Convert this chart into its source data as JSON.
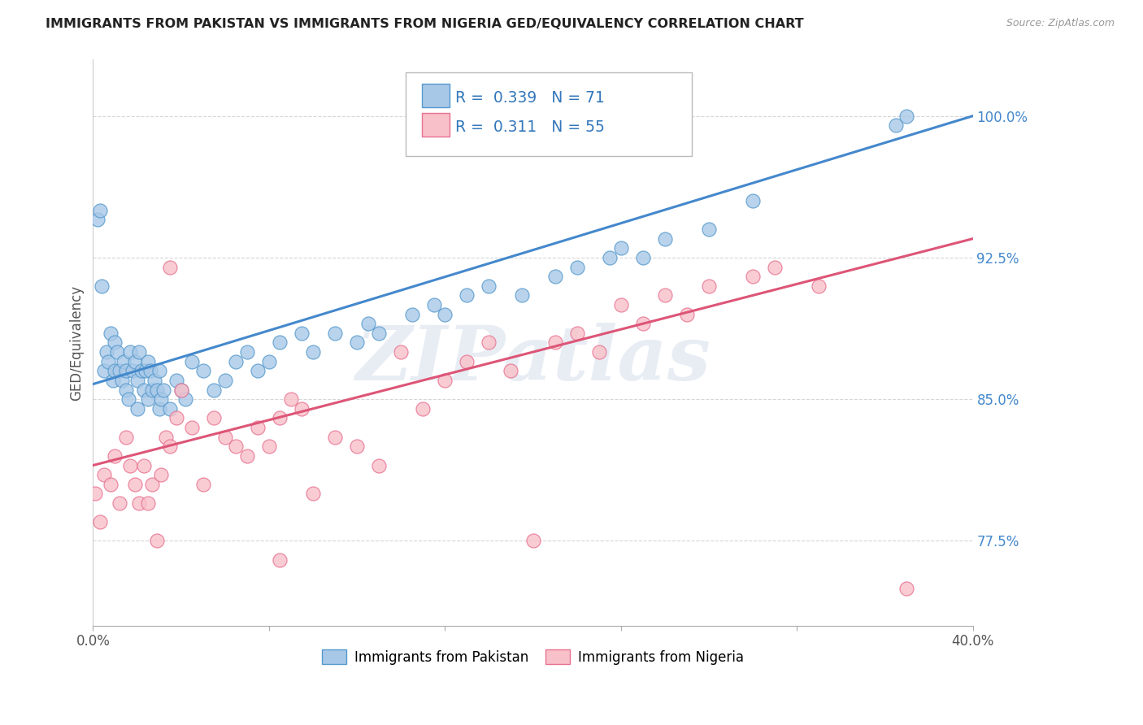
{
  "title": "IMMIGRANTS FROM PAKISTAN VS IMMIGRANTS FROM NIGERIA GED/EQUIVALENCY CORRELATION CHART",
  "source_text": "Source: ZipAtlas.com",
  "ylabel": "GED/Equivalency",
  "xlim": [
    0.0,
    40.0
  ],
  "ylim": [
    73.0,
    103.0
  ],
  "yticks": [
    77.5,
    85.0,
    92.5,
    100.0
  ],
  "ytick_labels": [
    "77.5%",
    "85.0%",
    "92.5%",
    "100.0%"
  ],
  "xticks": [
    0.0,
    8.0,
    16.0,
    24.0,
    32.0,
    40.0
  ],
  "xtick_labels": [
    "0.0%",
    "",
    "",
    "",
    "",
    "40.0%"
  ],
  "series": [
    {
      "label": "Immigrants from Pakistan",
      "R": 0.339,
      "N": 71,
      "color": "#a8c8e8",
      "edge_color": "#5599cc",
      "line_color": "#4488cc",
      "trend_x0": 0.0,
      "trend_y0": 85.8,
      "trend_x1": 40.0,
      "trend_y1": 100.0,
      "x": [
        0.2,
        0.3,
        0.4,
        0.5,
        0.6,
        0.7,
        0.8,
        0.9,
        1.0,
        1.0,
        1.1,
        1.2,
        1.3,
        1.4,
        1.5,
        1.5,
        1.6,
        1.7,
        1.8,
        1.9,
        2.0,
        2.0,
        2.1,
        2.2,
        2.3,
        2.4,
        2.5,
        2.5,
        2.6,
        2.7,
        2.8,
        2.9,
        3.0,
        3.0,
        3.1,
        3.2,
        3.5,
        3.8,
        4.0,
        4.2,
        4.5,
        5.0,
        5.5,
        6.0,
        6.5,
        7.0,
        7.5,
        8.0,
        8.5,
        9.5,
        10.0,
        11.0,
        12.0,
        12.5,
        13.0,
        14.5,
        15.5,
        16.0,
        17.0,
        18.0,
        19.5,
        21.0,
        22.0,
        23.5,
        24.0,
        25.0,
        26.0,
        28.0,
        30.0,
        36.5,
        37.0
      ],
      "y": [
        94.5,
        95.0,
        91.0,
        86.5,
        87.5,
        87.0,
        88.5,
        86.0,
        88.0,
        86.5,
        87.5,
        86.5,
        86.0,
        87.0,
        86.5,
        85.5,
        85.0,
        87.5,
        86.5,
        87.0,
        86.0,
        84.5,
        87.5,
        86.5,
        85.5,
        86.5,
        87.0,
        85.0,
        86.5,
        85.5,
        86.0,
        85.5,
        86.5,
        84.5,
        85.0,
        85.5,
        84.5,
        86.0,
        85.5,
        85.0,
        87.0,
        86.5,
        85.5,
        86.0,
        87.0,
        87.5,
        86.5,
        87.0,
        88.0,
        88.5,
        87.5,
        88.5,
        88.0,
        89.0,
        88.5,
        89.5,
        90.0,
        89.5,
        90.5,
        91.0,
        90.5,
        91.5,
        92.0,
        92.5,
        93.0,
        92.5,
        93.5,
        94.0,
        95.5,
        99.5,
        100.0
      ]
    },
    {
      "label": "Immigrants from Nigeria",
      "R": 0.311,
      "N": 55,
      "color": "#f8c0c8",
      "edge_color": "#e87090",
      "line_color": "#dd5577",
      "trend_x0": 0.0,
      "trend_y0": 81.5,
      "trend_x1": 40.0,
      "trend_y1": 93.5,
      "x": [
        0.1,
        0.3,
        0.5,
        0.8,
        1.0,
        1.2,
        1.5,
        1.7,
        1.9,
        2.1,
        2.3,
        2.5,
        2.7,
        2.9,
        3.1,
        3.3,
        3.5,
        3.8,
        4.0,
        4.5,
        5.0,
        5.5,
        6.0,
        6.5,
        7.0,
        7.5,
        8.0,
        8.5,
        9.0,
        9.5,
        10.0,
        11.0,
        12.0,
        13.0,
        14.0,
        15.0,
        16.0,
        17.0,
        18.0,
        19.0,
        20.0,
        21.0,
        22.0,
        23.0,
        24.0,
        25.0,
        26.0,
        27.0,
        28.0,
        30.0,
        31.0,
        33.0,
        8.5,
        37.0,
        3.5
      ],
      "y": [
        80.0,
        78.5,
        81.0,
        80.5,
        82.0,
        79.5,
        83.0,
        81.5,
        80.5,
        79.5,
        81.5,
        79.5,
        80.5,
        77.5,
        81.0,
        83.0,
        82.5,
        84.0,
        85.5,
        83.5,
        80.5,
        84.0,
        83.0,
        82.5,
        82.0,
        83.5,
        82.5,
        84.0,
        85.0,
        84.5,
        80.0,
        83.0,
        82.5,
        81.5,
        87.5,
        84.5,
        86.0,
        87.0,
        88.0,
        86.5,
        77.5,
        88.0,
        88.5,
        87.5,
        90.0,
        89.0,
        90.5,
        89.5,
        91.0,
        91.5,
        92.0,
        91.0,
        76.5,
        75.0,
        92.0
      ]
    }
  ],
  "watermark": "ZIPatlas",
  "background_color": "#ffffff",
  "grid_color": "#cccccc",
  "title_color": "#222222",
  "axis_label_color": "#555555",
  "tick_color_y": "#4488cc",
  "tick_color_x": "#555555"
}
